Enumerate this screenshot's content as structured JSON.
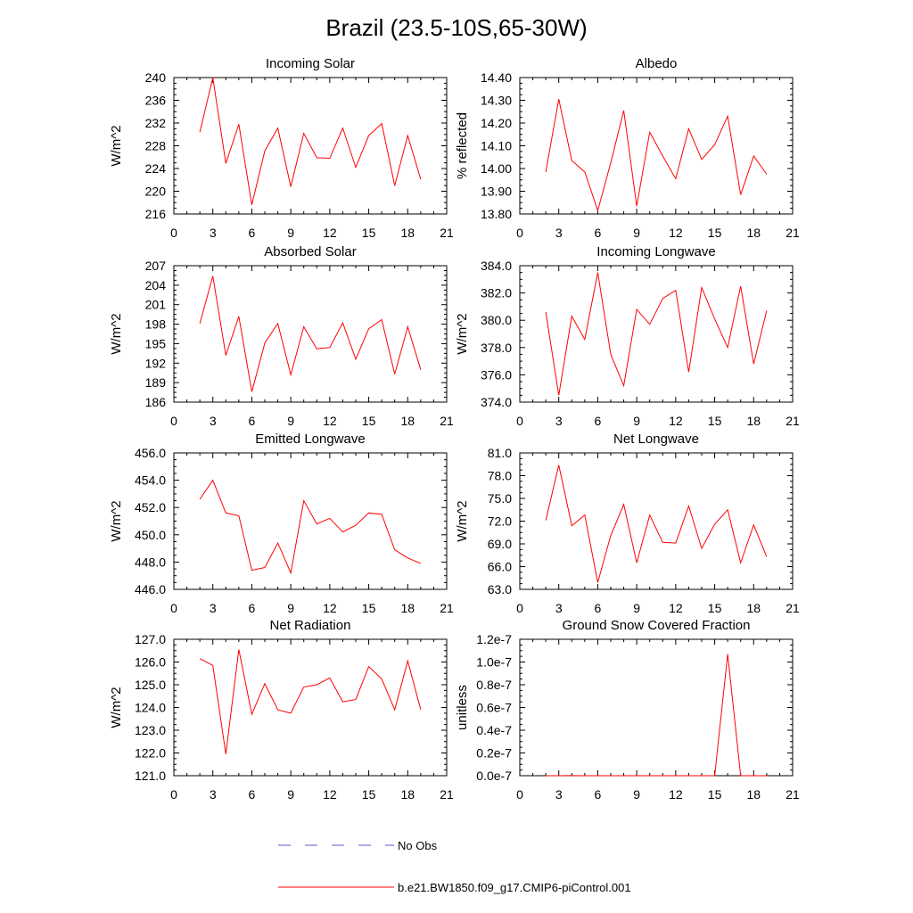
{
  "title": "Brazil (23.5-10S,65-30W)",
  "colors": {
    "model": "#ff0000",
    "obs": "#5a5ac8",
    "axis": "#000000"
  },
  "legend": {
    "obs_label": "No Obs",
    "model_label": "b.e21.BW1850.f09_g17.CMIP6-piControl.001"
  },
  "chart_data": [
    {
      "type": "line",
      "title": "Incoming Solar",
      "xlabel": "",
      "ylabel": "W/m^2",
      "xlim": [
        0,
        21
      ],
      "xticks": [
        0,
        3,
        6,
        9,
        12,
        15,
        18,
        21
      ],
      "ylim": [
        216,
        240
      ],
      "yticks": [
        "216",
        "220",
        "224",
        "228",
        "232",
        "236",
        "240"
      ],
      "x": [
        2,
        3,
        4,
        5,
        6,
        7,
        8,
        9,
        10,
        11,
        12,
        13,
        14,
        15,
        16,
        17,
        18,
        19
      ],
      "series": [
        {
          "values": [
            230.4,
            240.0,
            224.9,
            231.8,
            217.6,
            227.1,
            231.1,
            220.8,
            230.2,
            225.9,
            225.8,
            231.1,
            224.2,
            229.8,
            231.9,
            221.0,
            229.8,
            222.1
          ]
        }
      ]
    },
    {
      "type": "line",
      "title": "Albedo",
      "xlabel": "",
      "ylabel": "% reflected",
      "xlim": [
        0,
        21
      ],
      "xticks": [
        0,
        3,
        6,
        9,
        12,
        15,
        18,
        21
      ],
      "ylim": [
        13.8,
        14.4
      ],
      "yticks": [
        "13.80",
        "13.90",
        "14.00",
        "14.10",
        "14.20",
        "14.30",
        "14.40"
      ],
      "x": [
        2,
        3,
        4,
        5,
        6,
        7,
        8,
        9,
        10,
        11,
        12,
        13,
        14,
        15,
        16,
        17,
        18,
        19
      ],
      "series": [
        {
          "values": [
            13.985,
            14.305,
            14.035,
            13.985,
            13.815,
            14.025,
            14.255,
            13.835,
            14.16,
            14.055,
            13.955,
            14.175,
            14.04,
            14.105,
            14.23,
            13.885,
            14.055,
            13.975
          ]
        }
      ]
    },
    {
      "type": "line",
      "title": "Absorbed Solar",
      "xlabel": "",
      "ylabel": "W/m^2",
      "xlim": [
        0,
        21
      ],
      "xticks": [
        0,
        3,
        6,
        9,
        12,
        15,
        18,
        21
      ],
      "ylim": [
        186,
        207
      ],
      "yticks": [
        "186",
        "189",
        "192",
        "195",
        "198",
        "201",
        "204",
        "207"
      ],
      "x": [
        2,
        3,
        4,
        5,
        6,
        7,
        8,
        9,
        10,
        11,
        12,
        13,
        14,
        15,
        16,
        17,
        18,
        19
      ],
      "series": [
        {
          "values": [
            198.1,
            205.4,
            193.2,
            199.2,
            187.6,
            195.1,
            198.1,
            190.2,
            197.6,
            194.2,
            194.4,
            198.2,
            192.6,
            197.3,
            198.7,
            190.3,
            197.6,
            191.0
          ]
        }
      ]
    },
    {
      "type": "line",
      "title": "Incoming Longwave",
      "xlabel": "",
      "ylabel": "W/m^2",
      "xlim": [
        0,
        21
      ],
      "xticks": [
        0,
        3,
        6,
        9,
        12,
        15,
        18,
        21
      ],
      "ylim": [
        374,
        384
      ],
      "yticks": [
        "374.0",
        "376.0",
        "378.0",
        "380.0",
        "382.0",
        "384.0"
      ],
      "x": [
        2,
        3,
        4,
        5,
        6,
        7,
        8,
        9,
        10,
        11,
        12,
        13,
        14,
        15,
        16,
        17,
        18,
        19
      ],
      "series": [
        {
          "values": [
            380.6,
            374.5,
            380.3,
            378.6,
            383.5,
            377.5,
            375.2,
            380.8,
            379.7,
            381.6,
            382.2,
            376.2,
            382.4,
            380.1,
            378.0,
            382.5,
            376.8,
            380.7
          ]
        }
      ]
    },
    {
      "type": "line",
      "title": "Emitted Longwave",
      "xlabel": "",
      "ylabel": "W/m^2",
      "xlim": [
        0,
        21
      ],
      "xticks": [
        0,
        3,
        6,
        9,
        12,
        15,
        18,
        21
      ],
      "ylim": [
        446,
        456
      ],
      "yticks": [
        "446.0",
        "448.0",
        "450.0",
        "452.0",
        "454.0",
        "456.0"
      ],
      "x": [
        2,
        3,
        4,
        5,
        6,
        7,
        8,
        9,
        10,
        11,
        12,
        13,
        14,
        15,
        16,
        17,
        18,
        19
      ],
      "series": [
        {
          "values": [
            452.6,
            454.0,
            451.6,
            451.4,
            447.4,
            447.6,
            449.4,
            447.2,
            452.5,
            450.8,
            451.2,
            450.2,
            450.7,
            451.6,
            451.5,
            448.9,
            448.3,
            447.9
          ]
        }
      ]
    },
    {
      "type": "line",
      "title": "Net Longwave",
      "xlabel": "",
      "ylabel": "W/m^2",
      "xlim": [
        0,
        21
      ],
      "xticks": [
        0,
        3,
        6,
        9,
        12,
        15,
        18,
        21
      ],
      "ylim": [
        63,
        81
      ],
      "yticks": [
        "63.0",
        "66.0",
        "69.0",
        "72.0",
        "75.0",
        "78.0",
        "81.0"
      ],
      "x": [
        2,
        3,
        4,
        5,
        6,
        7,
        8,
        9,
        10,
        11,
        12,
        13,
        14,
        15,
        16,
        17,
        18,
        19
      ],
      "series": [
        {
          "values": [
            72.1,
            79.4,
            71.4,
            72.8,
            63.9,
            70.1,
            74.2,
            66.5,
            72.8,
            69.2,
            69.1,
            74.0,
            68.4,
            71.6,
            73.5,
            66.5,
            71.5,
            67.3
          ]
        }
      ]
    },
    {
      "type": "line",
      "title": "Net Radiation",
      "xlabel": "",
      "ylabel": "W/m^2",
      "xlim": [
        0,
        21
      ],
      "xticks": [
        0,
        3,
        6,
        9,
        12,
        15,
        18,
        21
      ],
      "ylim": [
        121,
        127
      ],
      "yticks": [
        "121.0",
        "122.0",
        "123.0",
        "124.0",
        "125.0",
        "126.0",
        "127.0"
      ],
      "x": [
        2,
        3,
        4,
        5,
        6,
        7,
        8,
        9,
        10,
        11,
        12,
        13,
        14,
        15,
        16,
        17,
        18,
        19
      ],
      "series": [
        {
          "values": [
            126.15,
            125.85,
            121.95,
            126.55,
            123.7,
            125.05,
            123.9,
            123.75,
            124.9,
            125.0,
            125.3,
            124.25,
            124.35,
            125.8,
            125.25,
            123.9,
            126.05,
            123.9
          ]
        }
      ]
    },
    {
      "type": "line",
      "title": "Ground Snow Covered Fraction",
      "xlabel": "",
      "ylabel": "unitless",
      "xlim": [
        0,
        21
      ],
      "xticks": [
        0,
        3,
        6,
        9,
        12,
        15,
        18,
        21
      ],
      "ylim": [
        0,
        1.2e-07
      ],
      "yticks": [
        "0.0e-7",
        "0.2e-7",
        "0.4e-7",
        "0.6e-7",
        "0.8e-7",
        "1.0e-7",
        "1.2e-7"
      ],
      "x": [
        2,
        3,
        4,
        5,
        6,
        7,
        8,
        9,
        10,
        11,
        12,
        13,
        14,
        15,
        16,
        17,
        18,
        19
      ],
      "series": [
        {
          "values": [
            0,
            0,
            1e-10,
            0,
            0,
            0,
            0,
            0,
            0,
            0,
            0,
            0,
            0,
            0,
            1.07e-07,
            0,
            0,
            0
          ]
        }
      ]
    }
  ]
}
